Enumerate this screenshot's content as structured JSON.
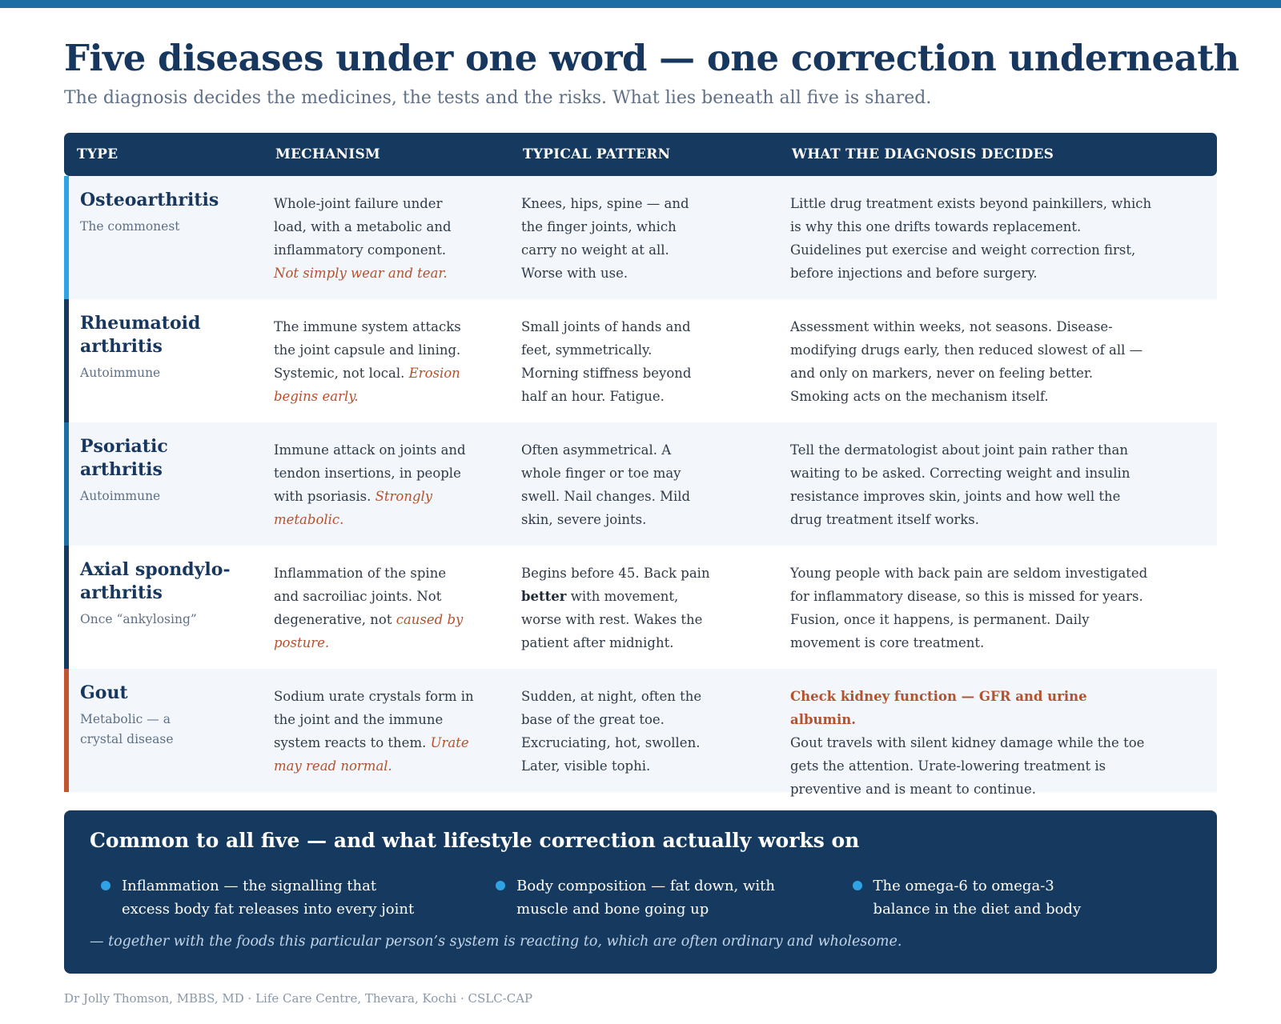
{
  "title": "Five diseases under one word — one correction underneath",
  "subtitle": "The diagnosis decides the medicines, the tests and the risks. What lies beneath all five is shared.",
  "colors": {
    "navy": "#163a5f",
    "title": "#17375e",
    "accent_rust": "#b5512d",
    "bullet_blue": "#2ea3e6"
  },
  "table": {
    "headers": [
      "TYPE",
      "MECHANISM",
      "TYPICAL PATTERN",
      "WHAT THE DIAGNOSIS DECIDES"
    ],
    "rows": [
      {
        "name": "Osteoarthritis",
        "subtype": "The commonest",
        "border_color": "#2ea3e6",
        "mechanism": "Whole-joint failure under load, with a metabolic and inflammatory component.",
        "mechanism_accent": "Not simply wear and tear.",
        "pattern": "Knees, hips, spine — and the finger joints, which carry no weight at all. Worse with use.",
        "decides": "Little drug treatment exists beyond painkillers, which is why this one drifts towards replacement. Guidelines put exercise and weight correction first, before injections and before surgery."
      },
      {
        "name": "Rheumatoid arthritis",
        "subtype": "Autoimmune",
        "border_color": "#163a5f",
        "mechanism": "The immune system attacks the joint capsule and lining. Systemic, not local.",
        "mechanism_accent": "Erosion begins early.",
        "pattern": "Small joints of hands and feet, symmetrically. Morning stiffness beyond half an hour. Fatigue.",
        "decides": "Assessment within weeks, not seasons. Disease-modifying drugs early, then reduced slowest of all — and only on markers, never on feeling better. Smoking acts on the mechanism itself."
      },
      {
        "name": "Psoriatic arthritis",
        "subtype": "Autoimmune",
        "border_color": "#1c6ea4",
        "mechanism": "Immune attack on joints and tendon insertions, in people with psoriasis.",
        "mechanism_accent": "Strongly metabolic.",
        "pattern": "Often asymmetrical. A whole finger or toe may swell. Nail changes. Mild skin, severe joints.",
        "decides": "Tell the dermatologist about joint pain rather than waiting to be asked. Correcting weight and insulin resistance improves skin, joints and how well the drug treatment itself works."
      },
      {
        "name": "Axial spondylo-arthritis",
        "subtype": "Once “ankylosing”",
        "border_color": "#163a5f",
        "mechanism": "Inflammation of the spine and sacroiliac joints. Not degenerative, not",
        "mechanism_accent": "caused by posture.",
        "pattern_before": "Begins before 45. Back pain ",
        "pattern_bold": "better",
        "pattern_after": " with movement, worse with rest. Wakes the patient after midnight.",
        "decides": "Young people with back pain are seldom investigated for inflammatory disease, so this is missed for years. Fusion, once it happens, is permanent. Daily movement is core treatment."
      },
      {
        "name": "Gout",
        "subtype": "Metabolic — a crystal disease",
        "border_color": "#c0552f",
        "mechanism": "Sodium urate crystals form in the joint and the immune system reacts to them.",
        "mechanism_accent": "Urate may read normal.",
        "pattern": "Sudden, at night, often the base of the great toe. Excruciating, hot, swollen. Later, visible tophi.",
        "decides_accent": "Check kidney function — GFR and urine albumin.",
        "decides": "Gout travels with silent kidney damage while the toe gets the attention. Urate-lowering treatment is preventive and is meant to continue."
      }
    ]
  },
  "common": {
    "heading": "Common to all five — and what lifestyle correction actually works on",
    "bullets": [
      "Inflammation — the signalling that excess body fat releases into every joint",
      "Body composition — fat down, with muscle and bone going up",
      "The omega-6 to omega-3 balance in the diet and body"
    ],
    "note": "— together with the foods this particular person’s system is reacting to, which are often ordinary and wholesome."
  },
  "footer": "Dr Jolly Thomson, MBBS, MD · Life Care Centre, Thevara, Kochi · CSLC-CAP"
}
